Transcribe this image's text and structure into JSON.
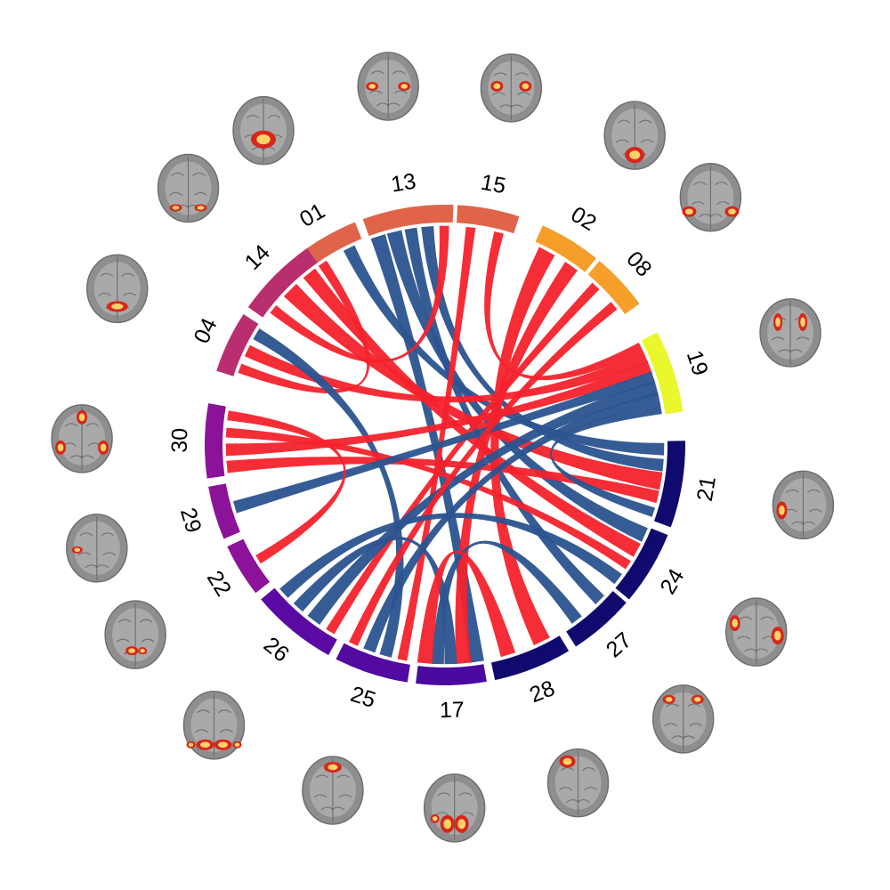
{
  "colors": {
    "positive_link": "#f5222d",
    "negative_link": "#2c5490",
    "brain_gray": "#8e8e8e",
    "activation_low": "#d8261c",
    "activation_high": "#fff176"
  },
  "segments": [
    {
      "id": "01",
      "label": "01",
      "color": "#e0644a",
      "icon": "brain-axial-cerebellum-blob"
    },
    {
      "id": "13",
      "label": "13",
      "color": "#e0644a",
      "icon": "brain-axial-bilateral-parietal-blobs"
    },
    {
      "id": "15",
      "label": "15",
      "color": "#e0644a",
      "icon": "brain-axial-bilateral-superior-blobs"
    },
    {
      "id": "02",
      "label": "02",
      "color": "#f59e2a",
      "icon": "brain-axial-occipital-blob"
    },
    {
      "id": "08",
      "label": "08",
      "color": "#f59e2a",
      "icon": "brain-axial-temporal-blobs"
    },
    {
      "id": "19",
      "label": "19",
      "color": "#e9f72c",
      "icon": "brain-coronal-parietal-blobs"
    },
    {
      "id": "21",
      "label": "21",
      "color": "#100a6e",
      "icon": "brain-axial-left-temporal-blob"
    },
    {
      "id": "24",
      "label": "24",
      "color": "#100a6e",
      "icon": "brain-axial-bilateral-frontal-blobs"
    },
    {
      "id": "27",
      "label": "27",
      "color": "#100a6e",
      "icon": "brain-axial-frontal-blobs"
    },
    {
      "id": "28",
      "label": "28",
      "color": "#100a6e",
      "icon": "brain-sagittal-frontal-blob"
    },
    {
      "id": "17",
      "label": "17",
      "color": "#4a0aa0",
      "icon": "brain-axial-occipital-blobs"
    },
    {
      "id": "25",
      "label": "25",
      "color": "#520aa0",
      "icon": "brain-axial-frontal-midline-blob"
    },
    {
      "id": "26",
      "label": "26",
      "color": "#5a0aa3",
      "icon": "brain-axial-posterior-blobs"
    },
    {
      "id": "22",
      "label": "22",
      "color": "#8b1299",
      "icon": "brain-coronal-inferior-blob"
    },
    {
      "id": "29",
      "label": "29",
      "color": "#8b1299",
      "icon": "brain-axial-left-lateral-blob"
    },
    {
      "id": "30",
      "label": "30",
      "color": "#8b1299",
      "icon": "brain-coronal-bilateral-blobs"
    },
    {
      "id": "04",
      "label": "04",
      "color": "#b82e6e",
      "icon": "brain-coronal-cerebellum-blob"
    },
    {
      "id": "14",
      "label": "14",
      "color": "#b82e6e",
      "icon": "brain-coronal-bilateral-cerebellum-blobs"
    }
  ],
  "links": [
    {
      "from": "01",
      "to": "04",
      "sign": "positive",
      "weight": 2
    },
    {
      "from": "01",
      "to": "21",
      "sign": "negative",
      "weight": 3
    },
    {
      "from": "13",
      "to": "17",
      "sign": "negative",
      "weight": 4
    },
    {
      "from": "13",
      "to": "24",
      "sign": "negative",
      "weight": 4
    },
    {
      "from": "13",
      "to": "27",
      "sign": "negative",
      "weight": 3
    },
    {
      "from": "13",
      "to": "21",
      "sign": "negative",
      "weight": 3
    },
    {
      "from": "13",
      "to": "14",
      "sign": "positive",
      "weight": 2
    },
    {
      "from": "15",
      "to": "25",
      "sign": "positive",
      "weight": 2
    },
    {
      "from": "15",
      "to": "19",
      "sign": "positive",
      "weight": 2
    },
    {
      "from": "02",
      "to": "28",
      "sign": "positive",
      "weight": 5
    },
    {
      "from": "02",
      "to": "17",
      "sign": "positive",
      "weight": 4
    },
    {
      "from": "08",
      "to": "26",
      "sign": "positive",
      "weight": 2
    },
    {
      "from": "14",
      "to": "21",
      "sign": "positive",
      "weight": 5
    },
    {
      "from": "14",
      "to": "24",
      "sign": "positive",
      "weight": 4
    },
    {
      "from": "04",
      "to": "19",
      "sign": "positive",
      "weight": 3
    },
    {
      "from": "04",
      "to": "25",
      "sign": "negative",
      "weight": 3
    },
    {
      "from": "30",
      "to": "21",
      "sign": "positive",
      "weight": 3
    },
    {
      "from": "30",
      "to": "19",
      "sign": "positive",
      "weight": 3
    },
    {
      "from": "30",
      "to": "24",
      "sign": "positive",
      "weight": 2
    },
    {
      "from": "29",
      "to": "19",
      "sign": "negative",
      "weight": 3
    },
    {
      "from": "22",
      "to": "30",
      "sign": "positive",
      "weight": 2
    },
    {
      "from": "26",
      "to": "19",
      "sign": "negative",
      "weight": 4
    },
    {
      "from": "25",
      "to": "19",
      "sign": "negative",
      "weight": 3
    },
    {
      "from": "25",
      "to": "08",
      "sign": "positive",
      "weight": 2
    },
    {
      "from": "17",
      "to": "26",
      "sign": "negative",
      "weight": 3
    },
    {
      "from": "17",
      "to": "27",
      "sign": "negative",
      "weight": 3
    },
    {
      "from": "17",
      "to": "28",
      "sign": "positive",
      "weight": 4
    },
    {
      "from": "26",
      "to": "24",
      "sign": "negative",
      "weight": 3
    },
    {
      "from": "21",
      "to": "19",
      "sign": "negative",
      "weight": 2
    }
  ]
}
